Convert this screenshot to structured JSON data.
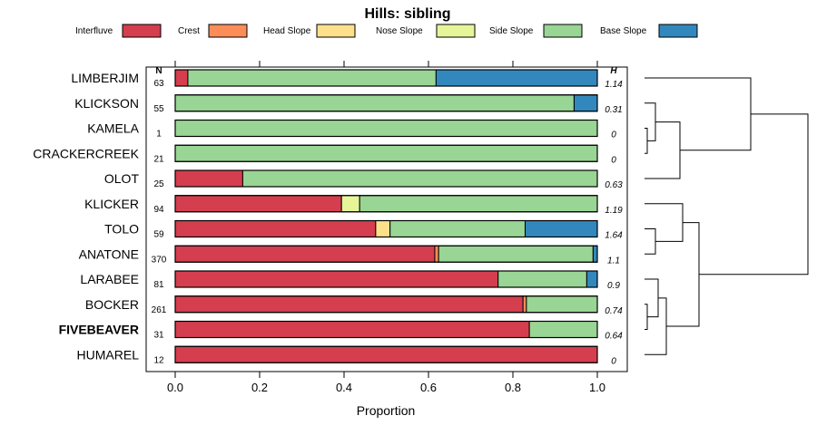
{
  "chart_data": {
    "type": "bar",
    "orientation": "horizontal",
    "stacked": true,
    "title": "Hills: sibling",
    "xlabel": "Proportion",
    "ylabel": "",
    "xlim": [
      0,
      1
    ],
    "xticks": [
      0,
      0.2,
      0.4,
      0.6,
      0.8,
      1
    ],
    "xtick_labels": [
      "0.0",
      "0.2",
      "0.4",
      "0.6",
      "0.8",
      "1.0"
    ],
    "n_header": "N",
    "h_header": "H",
    "legend_position": "top",
    "legend": [
      {
        "name": "Interfluve",
        "color": "#d53e4f"
      },
      {
        "name": "Crest",
        "color": "#fc8d59"
      },
      {
        "name": "Head Slope",
        "color": "#fee08b"
      },
      {
        "name": "Nose Slope",
        "color": "#e6f598"
      },
      {
        "name": "Side Slope",
        "color": "#99d594"
      },
      {
        "name": "Base Slope",
        "color": "#3288bd"
      }
    ],
    "highlight_category": "FIVEBEAVER",
    "categories": [
      "LIMBERJIM",
      "KLICKSON",
      "KAMELA",
      "CRACKERCREEK",
      "OLOT",
      "KLICKER",
      "TOLO",
      "ANATONE",
      "LARABEE",
      "BOCKER",
      "FIVEBEAVER",
      "HUMAREL"
    ],
    "n": [
      "63",
      "55",
      "1",
      "21",
      "25",
      "94",
      "59",
      "370",
      "81",
      "261",
      "31",
      "12"
    ],
    "h": [
      "1.14",
      "0.31",
      "0",
      "0",
      "0.63",
      "1.19",
      "1.64",
      "1.1",
      "0.9",
      "0.74",
      "0.64",
      "0"
    ],
    "series": [
      {
        "name": "Interfluve",
        "values": [
          0.03,
          0,
          0,
          0,
          0.16,
          0.394,
          0.475,
          0.615,
          0.765,
          0.824,
          0.839,
          1.0
        ]
      },
      {
        "name": "Crest",
        "values": [
          0,
          0,
          0,
          0,
          0,
          0,
          0,
          0.009,
          0,
          0.008,
          0,
          0
        ]
      },
      {
        "name": "Head Slope",
        "values": [
          0,
          0,
          0,
          0,
          0,
          0,
          0.034,
          0,
          0,
          0,
          0,
          0
        ]
      },
      {
        "name": "Nose Slope",
        "values": [
          0,
          0,
          0,
          0,
          0,
          0.043,
          0,
          0,
          0,
          0,
          0,
          0
        ]
      },
      {
        "name": "Side Slope",
        "values": [
          0.588,
          0.945,
          1.0,
          1.0,
          0.84,
          0.563,
          0.32,
          0.366,
          0.21,
          0.168,
          0.161,
          0
        ]
      },
      {
        "name": "Base Slope",
        "values": [
          0.382,
          0.055,
          0,
          0,
          0,
          0,
          0.171,
          0.01,
          0.025,
          0,
          0,
          0
        ]
      }
    ],
    "dendrogram": {
      "description": "hierarchical clustering of profiles",
      "merges": [
        {
          "id": "m1",
          "members": [
            "KAMELA",
            "CRACKERCREEK"
          ],
          "height": 0.05
        },
        {
          "id": "m2",
          "members": [
            "KLICKSON",
            "m1"
          ],
          "height": 0.2
        },
        {
          "id": "m3",
          "members": [
            "m2",
            "OLOT"
          ],
          "height": 0.65
        },
        {
          "id": "m4",
          "members": [
            "LIMBERJIM",
            "m3"
          ],
          "height": 1.95
        },
        {
          "id": "m5",
          "members": [
            "TOLO",
            "ANATONE"
          ],
          "height": 0.2
        },
        {
          "id": "m6",
          "members": [
            "KLICKER",
            "m5"
          ],
          "height": 0.7
        },
        {
          "id": "m7",
          "members": [
            "BOCKER",
            "FIVEBEAVER"
          ],
          "height": 0.05
        },
        {
          "id": "m8",
          "members": [
            "LARABEE",
            "m7"
          ],
          "height": 0.25
        },
        {
          "id": "m9",
          "members": [
            "m8",
            "HUMAREL"
          ],
          "height": 0.4
        },
        {
          "id": "m10",
          "members": [
            "m6",
            "m9"
          ],
          "height": 1.0
        },
        {
          "id": "m11",
          "members": [
            "m4",
            "m10"
          ],
          "height": 3.0
        }
      ]
    }
  }
}
